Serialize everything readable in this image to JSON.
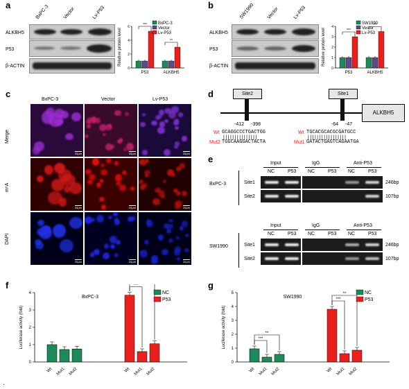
{
  "panels": {
    "a": {
      "label": "a",
      "lanes": [
        "BxPC-3",
        "Vector",
        "Lv-P53"
      ],
      "rows": [
        "ALKBH5",
        "P53",
        "β-ACTIN"
      ],
      "legend": [
        "BxPC-3",
        "Vector",
        "Lv-P53"
      ],
      "ylabel": "Relative protein level",
      "yticks": [
        "0",
        "2",
        "4",
        "6"
      ],
      "groups": [
        "P53",
        "ALKBH5"
      ],
      "sig": [
        "***",
        "**"
      ]
    },
    "b": {
      "label": "b",
      "lanes": [
        "SW1990",
        "Vector",
        "Lv-P53"
      ],
      "rows": [
        "ALKBH5",
        "P53",
        "β-ACTIN"
      ],
      "legend": [
        "SW1990",
        "Vector",
        "Lv-P53"
      ],
      "ylabel": "Relative protein level",
      "yticks": [
        "0",
        "1",
        "2",
        "3",
        "4"
      ],
      "groups": [
        "P53",
        "ALKBH5"
      ],
      "sig": [
        "***",
        "***"
      ]
    },
    "c": {
      "label": "c",
      "cols": [
        "BxPC-3",
        "Vector",
        "Lv-P53"
      ],
      "rows": [
        "Merge",
        "m⁶A",
        "DAPI"
      ],
      "scale": "20μm"
    },
    "d": {
      "label": "d",
      "site2": "Site2",
      "site1": "Site1",
      "gene": "ALKBH5",
      "pos_site2": [
        "-412",
        "-398"
      ],
      "pos_site1": [
        "-64",
        "-47"
      ],
      "wt_label": "Wt",
      "mut1_label": "Mut1",
      "mut2_label": "Mut2",
      "wt_seq_site2": "GCAGGCCCTGACTGG",
      "mut2_seq": "TGGCAAGGACTACTA",
      "wt_seq_site1": "TGCACGCACGCGATGCC",
      "mut1_seq": "GATACTGAGTCAGAATGA"
    },
    "e": {
      "label": "e",
      "groups": [
        "Input",
        "IgG",
        "Anti-P53"
      ],
      "lanes": [
        "NC",
        "P53",
        "NC",
        "P53",
        "NC",
        "P53"
      ],
      "cells": [
        "BxPC-3",
        "SW1990"
      ],
      "sites": [
        "Site1",
        "Site2"
      ],
      "sizes": [
        "246bp",
        "107bp"
      ]
    },
    "f": {
      "label": "f",
      "cell": "BxPC-3",
      "legend": [
        "NC",
        "P53"
      ]
    },
    "g": {
      "label": "g",
      "cell": "SW1990",
      "legend": [
        "NC",
        "P53"
      ]
    }
  },
  "colors": {
    "nc": "#1e8a5a",
    "p53": "#e8201e",
    "vector": "#5b4a8c",
    "ctrl": "#1e8a5a"
  },
  "chart_data": [
    {
      "type": "bar",
      "panel": "a",
      "categories": [
        "P53",
        "ALKBH5"
      ],
      "series": [
        {
          "name": "BxPC-3",
          "values": [
            1.0,
            1.0
          ]
        },
        {
          "name": "Vector",
          "values": [
            1.0,
            1.0
          ]
        },
        {
          "name": "Lv-P53",
          "values": [
            5.3,
            3.0
          ]
        }
      ],
      "ylabel": "Relative protein level",
      "ylim": [
        0,
        6
      ],
      "yticks": [
        0,
        2,
        4,
        6
      ]
    },
    {
      "type": "bar",
      "panel": "b",
      "categories": [
        "P53",
        "ALKBH5"
      ],
      "series": [
        {
          "name": "SW1990",
          "values": [
            1.0,
            1.0
          ]
        },
        {
          "name": "Vector",
          "values": [
            1.0,
            1.0
          ]
        },
        {
          "name": "Lv-P53",
          "values": [
            3.0,
            3.5
          ]
        }
      ],
      "ylabel": "Relative protein level",
      "ylim": [
        0,
        4
      ],
      "yticks": [
        0,
        1,
        2,
        3,
        4
      ]
    },
    {
      "type": "bar",
      "panel": "f",
      "title": "BxPC-3",
      "categories": [
        "Wt",
        "Mut1",
        "Mut2"
      ],
      "series": [
        {
          "name": "NC",
          "values": [
            1.0,
            0.72,
            0.75
          ]
        },
        {
          "name": "P53",
          "values": [
            3.85,
            0.6,
            1.05
          ]
        }
      ],
      "ylabel": "Luciferase activity (fold)",
      "ylim": [
        0,
        4
      ],
      "yticks": [
        0,
        1,
        2,
        3,
        4
      ],
      "sig": [
        "***",
        "***"
      ]
    },
    {
      "type": "bar",
      "panel": "g",
      "title": "SW1990",
      "categories": [
        "Wt",
        "Mut1",
        "Mut2"
      ],
      "series": [
        {
          "name": "NC",
          "values": [
            0.95,
            0.35,
            0.55
          ]
        },
        {
          "name": "P53",
          "values": [
            3.8,
            0.6,
            0.85
          ]
        }
      ],
      "ylabel": "Luciferase activity (fold)",
      "ylim": [
        0,
        5
      ],
      "yticks": [
        0,
        1,
        2,
        3,
        4,
        5
      ],
      "sig_nc": [
        "***",
        "**"
      ],
      "sig_p53": [
        "***",
        "**"
      ]
    }
  ],
  "footer_mark": "."
}
